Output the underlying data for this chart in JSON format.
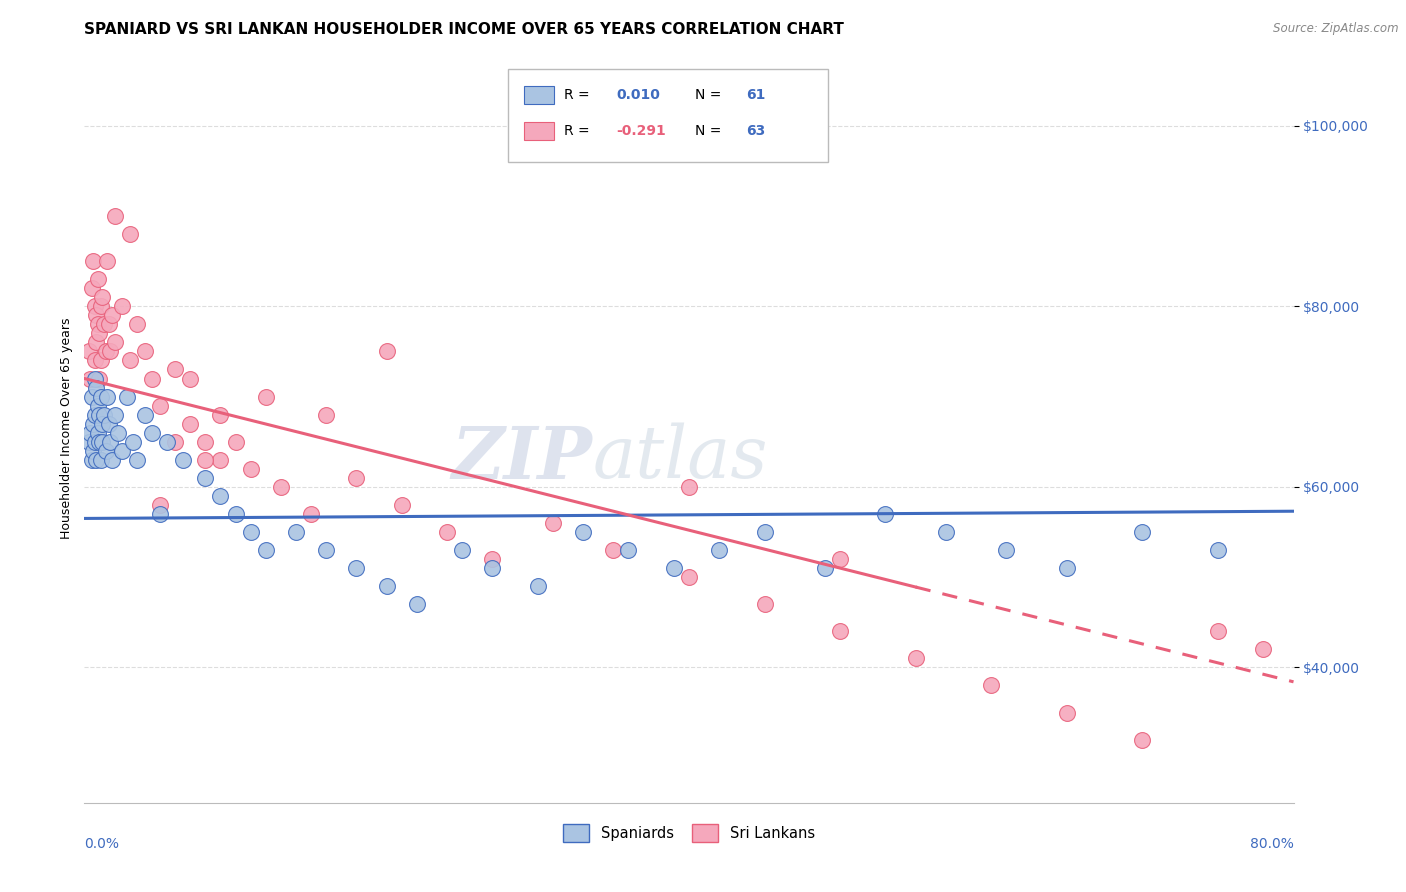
{
  "title": "SPANIARD VS SRI LANKAN HOUSEHOLDER INCOME OVER 65 YEARS CORRELATION CHART",
  "source": "Source: ZipAtlas.com",
  "ylabel": "Householder Income Over 65 years",
  "xmin": 0.0,
  "xmax": 0.8,
  "ymin": 25000,
  "ymax": 108000,
  "yticks": [
    40000,
    60000,
    80000,
    100000
  ],
  "ytick_labels": [
    "$40,000",
    "$60,000",
    "$80,000",
    "$100,000"
  ],
  "watermark_zip": "ZIP",
  "watermark_atlas": "atlas",
  "legend_line1_black": "R = ",
  "legend_line1_blue": "0.010",
  "legend_line1_n_black": "N = ",
  "legend_line1_n_blue": "61",
  "legend_line2_black": "R = ",
  "legend_line2_pink": "-0.291",
  "legend_line2_n_black": "N = ",
  "legend_line2_n_blue": "63",
  "spaniards_color": "#aac4e2",
  "sri_lankans_color": "#f5a8bc",
  "trend_spaniards_color": "#3f6bbf",
  "trend_sri_lankans_color": "#e8607a",
  "background_color": "#ffffff",
  "grid_color": "#dddddd",
  "spaniards_x": [
    0.003,
    0.004,
    0.005,
    0.005,
    0.006,
    0.006,
    0.007,
    0.007,
    0.007,
    0.008,
    0.008,
    0.009,
    0.009,
    0.01,
    0.01,
    0.011,
    0.011,
    0.012,
    0.012,
    0.013,
    0.014,
    0.015,
    0.016,
    0.017,
    0.018,
    0.02,
    0.022,
    0.025,
    0.028,
    0.032,
    0.035,
    0.04,
    0.045,
    0.05,
    0.055,
    0.065,
    0.08,
    0.09,
    0.1,
    0.11,
    0.12,
    0.14,
    0.16,
    0.18,
    0.2,
    0.22,
    0.25,
    0.27,
    0.3,
    0.33,
    0.36,
    0.39,
    0.42,
    0.45,
    0.49,
    0.53,
    0.57,
    0.61,
    0.65,
    0.7,
    0.75
  ],
  "spaniards_y": [
    65000,
    66000,
    63000,
    70000,
    67000,
    64000,
    65000,
    68000,
    72000,
    63000,
    71000,
    66000,
    69000,
    65000,
    68000,
    70000,
    63000,
    67000,
    65000,
    68000,
    64000,
    70000,
    67000,
    65000,
    63000,
    68000,
    66000,
    64000,
    70000,
    65000,
    63000,
    68000,
    66000,
    57000,
    65000,
    63000,
    61000,
    59000,
    57000,
    55000,
    53000,
    55000,
    53000,
    51000,
    49000,
    47000,
    53000,
    51000,
    49000,
    55000,
    53000,
    51000,
    53000,
    55000,
    51000,
    57000,
    55000,
    53000,
    51000,
    55000,
    53000
  ],
  "sri_lankans_x": [
    0.003,
    0.004,
    0.005,
    0.006,
    0.007,
    0.007,
    0.008,
    0.008,
    0.009,
    0.009,
    0.01,
    0.01,
    0.011,
    0.011,
    0.012,
    0.013,
    0.014,
    0.015,
    0.016,
    0.017,
    0.018,
    0.02,
    0.025,
    0.03,
    0.035,
    0.04,
    0.045,
    0.05,
    0.06,
    0.07,
    0.08,
    0.09,
    0.1,
    0.11,
    0.13,
    0.15,
    0.18,
    0.21,
    0.24,
    0.27,
    0.31,
    0.35,
    0.4,
    0.45,
    0.5,
    0.55,
    0.6,
    0.65,
    0.7,
    0.75,
    0.78,
    0.09,
    0.12,
    0.16,
    0.2,
    0.5,
    0.07,
    0.4,
    0.02,
    0.03,
    0.05,
    0.06,
    0.08
  ],
  "sri_lankans_y": [
    75000,
    72000,
    82000,
    85000,
    74000,
    80000,
    79000,
    76000,
    78000,
    83000,
    72000,
    77000,
    80000,
    74000,
    81000,
    78000,
    75000,
    85000,
    78000,
    75000,
    79000,
    76000,
    80000,
    74000,
    78000,
    75000,
    72000,
    69000,
    73000,
    67000,
    65000,
    68000,
    65000,
    62000,
    60000,
    57000,
    61000,
    58000,
    55000,
    52000,
    56000,
    53000,
    50000,
    47000,
    44000,
    41000,
    38000,
    35000,
    32000,
    44000,
    42000,
    63000,
    70000,
    68000,
    75000,
    52000,
    72000,
    60000,
    90000,
    88000,
    58000,
    65000,
    63000
  ]
}
